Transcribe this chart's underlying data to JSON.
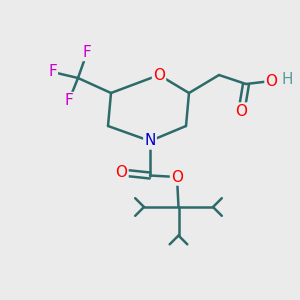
{
  "bg_color": "#ebebeb",
  "bond_color": "#2d6b6b",
  "bond_width": 1.8,
  "atom_colors": {
    "O": "#ff0000",
    "N": "#0000cc",
    "F": "#cc00cc",
    "H": "#5a9a9a"
  },
  "font_size": 11,
  "figsize": [
    3.0,
    3.0
  ],
  "dpi": 100
}
